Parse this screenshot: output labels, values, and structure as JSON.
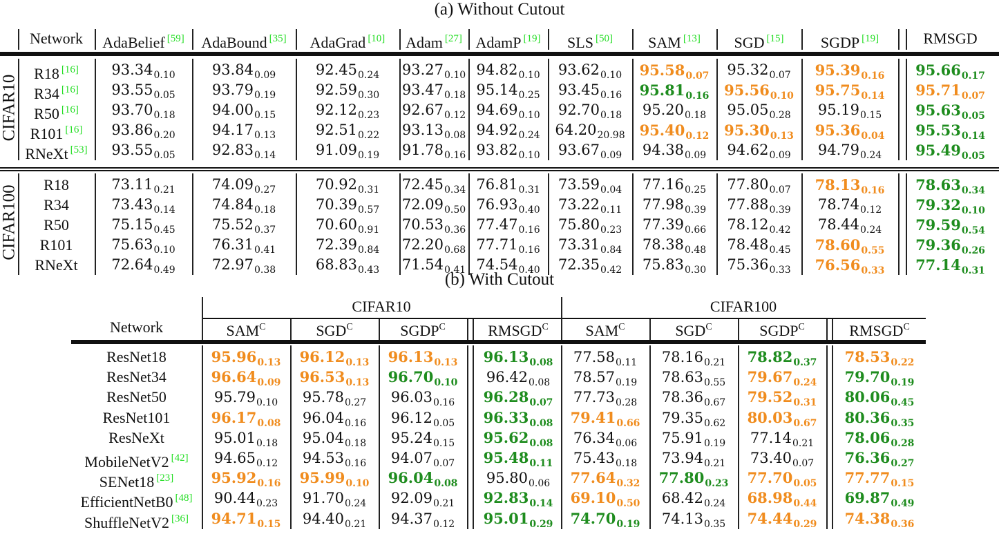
{
  "caption_a": "(a) Without Cutout",
  "caption_b": "(b) With Cutout",
  "colors": {
    "best": "#1e8c1e",
    "second": "#f08c1e",
    "citation": "#22dd22"
  },
  "table_a": {
    "network_header": "Network",
    "columns": [
      {
        "name": "AdaBelief",
        "cite": "[59]"
      },
      {
        "name": "AdaBound",
        "cite": "[35]"
      },
      {
        "name": "AdaGrad",
        "cite": "[10]"
      },
      {
        "name": "Adam",
        "cite": "[27]"
      },
      {
        "name": "AdamP",
        "cite": "[19]"
      },
      {
        "name": "SLS",
        "cite": "[50]"
      },
      {
        "name": "SAM",
        "cite": "[13]"
      },
      {
        "name": "SGD",
        "cite": "[15]"
      },
      {
        "name": "SGDP",
        "cite": "[19]"
      },
      {
        "name": "RMSGD",
        "cite": ""
      }
    ],
    "groups": [
      {
        "dataset": "CIFAR10",
        "rows": [
          {
            "network": "R18",
            "cite": "[16]",
            "cells": [
              [
                "93.34",
                "0.10",
                "k"
              ],
              [
                "93.84",
                "0.09",
                "k"
              ],
              [
                "92.45",
                "0.24",
                "k"
              ],
              [
                "93.27",
                "0.10",
                "k"
              ],
              [
                "94.82",
                "0.10",
                "k"
              ],
              [
                "93.62",
                "0.10",
                "k"
              ],
              [
                "95.58",
                "0.07",
                "o"
              ],
              [
                "95.32",
                "0.07",
                "k"
              ],
              [
                "95.39",
                "0.16",
                "o"
              ],
              [
                "95.66",
                "0.17",
                "g"
              ]
            ]
          },
          {
            "network": "R34",
            "cite": "[16]",
            "cells": [
              [
                "93.55",
                "0.05",
                "k"
              ],
              [
                "93.79",
                "0.19",
                "k"
              ],
              [
                "92.59",
                "0.30",
                "k"
              ],
              [
                "93.47",
                "0.18",
                "k"
              ],
              [
                "95.14",
                "0.25",
                "k"
              ],
              [
                "93.45",
                "0.16",
                "k"
              ],
              [
                "95.81",
                "0.16",
                "g"
              ],
              [
                "95.56",
                "0.10",
                "o"
              ],
              [
                "95.75",
                "0.14",
                "o"
              ],
              [
                "95.71",
                "0.07",
                "o"
              ]
            ]
          },
          {
            "network": "R50",
            "cite": "[16]",
            "cells": [
              [
                "93.70",
                "0.18",
                "k"
              ],
              [
                "94.00",
                "0.15",
                "k"
              ],
              [
                "92.12",
                "0.23",
                "k"
              ],
              [
                "92.67",
                "0.12",
                "k"
              ],
              [
                "94.69",
                "0.10",
                "k"
              ],
              [
                "92.70",
                "0.18",
                "k"
              ],
              [
                "95.20",
                "0.18",
                "k"
              ],
              [
                "95.05",
                "0.28",
                "k"
              ],
              [
                "95.19",
                "0.15",
                "k"
              ],
              [
                "95.63",
                "0.05",
                "g"
              ]
            ]
          },
          {
            "network": "R101",
            "cite": "[16]",
            "cells": [
              [
                "93.86",
                "0.20",
                "k"
              ],
              [
                "94.17",
                "0.13",
                "k"
              ],
              [
                "92.51",
                "0.22",
                "k"
              ],
              [
                "93.13",
                "0.08",
                "k"
              ],
              [
                "94.92",
                "0.24",
                "k"
              ],
              [
                "64.20",
                "20.98",
                "k"
              ],
              [
                "95.40",
                "0.12",
                "o"
              ],
              [
                "95.30",
                "0.13",
                "o"
              ],
              [
                "95.36",
                "0.04",
                "o"
              ],
              [
                "95.53",
                "0.14",
                "g"
              ]
            ]
          },
          {
            "network": "RNeXt",
            "cite": "[53]",
            "cells": [
              [
                "93.55",
                "0.05",
                "k"
              ],
              [
                "92.83",
                "0.14",
                "k"
              ],
              [
                "91.09",
                "0.19",
                "k"
              ],
              [
                "91.78",
                "0.16",
                "k"
              ],
              [
                "93.82",
                "0.10",
                "k"
              ],
              [
                "93.67",
                "0.09",
                "k"
              ],
              [
                "94.38",
                "0.09",
                "k"
              ],
              [
                "94.62",
                "0.09",
                "k"
              ],
              [
                "94.79",
                "0.24",
                "k"
              ],
              [
                "95.49",
                "0.05",
                "g"
              ]
            ]
          }
        ]
      },
      {
        "dataset": "CIFAR100",
        "rows": [
          {
            "network": "R18",
            "cite": "",
            "cells": [
              [
                "73.11",
                "0.21",
                "k"
              ],
              [
                "74.09",
                "0.27",
                "k"
              ],
              [
                "70.92",
                "0.31",
                "k"
              ],
              [
                "72.45",
                "0.34",
                "k"
              ],
              [
                "76.81",
                "0.31",
                "k"
              ],
              [
                "73.59",
                "0.04",
                "k"
              ],
              [
                "77.16",
                "0.25",
                "k"
              ],
              [
                "77.80",
                "0.07",
                "k"
              ],
              [
                "78.13",
                "0.16",
                "o"
              ],
              [
                "78.63",
                "0.34",
                "g"
              ]
            ]
          },
          {
            "network": "R34",
            "cite": "",
            "cells": [
              [
                "73.43",
                "0.14",
                "k"
              ],
              [
                "74.84",
                "0.18",
                "k"
              ],
              [
                "70.39",
                "0.57",
                "k"
              ],
              [
                "72.09",
                "0.50",
                "k"
              ],
              [
                "76.93",
                "0.40",
                "k"
              ],
              [
                "73.22",
                "0.11",
                "k"
              ],
              [
                "77.98",
                "0.39",
                "k"
              ],
              [
                "77.88",
                "0.39",
                "k"
              ],
              [
                "78.74",
                "0.12",
                "k"
              ],
              [
                "79.32",
                "0.10",
                "g"
              ]
            ]
          },
          {
            "network": "R50",
            "cite": "",
            "cells": [
              [
                "75.15",
                "0.45",
                "k"
              ],
              [
                "75.52",
                "0.37",
                "k"
              ],
              [
                "70.60",
                "0.91",
                "k"
              ],
              [
                "70.53",
                "0.36",
                "k"
              ],
              [
                "77.47",
                "0.16",
                "k"
              ],
              [
                "75.80",
                "0.23",
                "k"
              ],
              [
                "77.39",
                "0.66",
                "k"
              ],
              [
                "78.12",
                "0.42",
                "k"
              ],
              [
                "78.44",
                "0.24",
                "k"
              ],
              [
                "79.59",
                "0.54",
                "g"
              ]
            ]
          },
          {
            "network": "R101",
            "cite": "",
            "cells": [
              [
                "75.63",
                "0.10",
                "k"
              ],
              [
                "76.31",
                "0.41",
                "k"
              ],
              [
                "72.39",
                "0.84",
                "k"
              ],
              [
                "72.20",
                "0.68",
                "k"
              ],
              [
                "77.71",
                "0.16",
                "k"
              ],
              [
                "73.31",
                "0.84",
                "k"
              ],
              [
                "78.38",
                "0.48",
                "k"
              ],
              [
                "78.48",
                "0.45",
                "k"
              ],
              [
                "78.60",
                "0.55",
                "o"
              ],
              [
                "79.36",
                "0.26",
                "g"
              ]
            ]
          },
          {
            "network": "RNeXt",
            "cite": "",
            "cells": [
              [
                "72.64",
                "0.49",
                "k"
              ],
              [
                "72.97",
                "0.38",
                "k"
              ],
              [
                "68.83",
                "0.43",
                "k"
              ],
              [
                "71.54",
                "0.41",
                "k"
              ],
              [
                "74.54",
                "0.40",
                "k"
              ],
              [
                "72.35",
                "0.42",
                "k"
              ],
              [
                "75.83",
                "0.30",
                "k"
              ],
              [
                "75.36",
                "0.33",
                "k"
              ],
              [
                "76.56",
                "0.33",
                "o"
              ],
              [
                "77.14",
                "0.31",
                "g"
              ]
            ]
          }
        ]
      }
    ]
  },
  "table_b": {
    "network_header": "Network",
    "dataset_headers": [
      "CIFAR10",
      "CIFAR100"
    ],
    "columns": [
      "SAM",
      "SGD",
      "SGDP",
      "RMSGD",
      "SAM",
      "SGD",
      "SGDP",
      "RMSGD"
    ],
    "column_sup": "C",
    "rows": [
      {
        "network": "ResNet18",
        "cite": "",
        "cells": [
          [
            "95.96",
            "0.13",
            "o"
          ],
          [
            "96.12",
            "0.13",
            "o"
          ],
          [
            "96.13",
            "0.13",
            "o"
          ],
          [
            "96.13",
            "0.08",
            "g"
          ],
          [
            "77.58",
            "0.11",
            "k"
          ],
          [
            "78.16",
            "0.21",
            "k"
          ],
          [
            "78.82",
            "0.37",
            "g"
          ],
          [
            "78.53",
            "0.22",
            "o"
          ]
        ]
      },
      {
        "network": "ResNet34",
        "cite": "",
        "cells": [
          [
            "96.64",
            "0.09",
            "o"
          ],
          [
            "96.53",
            "0.13",
            "o"
          ],
          [
            "96.70",
            "0.10",
            "g"
          ],
          [
            "96.42",
            "0.08",
            "k"
          ],
          [
            "78.57",
            "0.19",
            "k"
          ],
          [
            "78.63",
            "0.55",
            "k"
          ],
          [
            "79.67",
            "0.24",
            "o"
          ],
          [
            "79.70",
            "0.19",
            "g"
          ]
        ]
      },
      {
        "network": "ResNet50",
        "cite": "",
        "cells": [
          [
            "95.79",
            "0.10",
            "k"
          ],
          [
            "95.78",
            "0.27",
            "k"
          ],
          [
            "96.03",
            "0.16",
            "k"
          ],
          [
            "96.28",
            "0.07",
            "g"
          ],
          [
            "77.73",
            "0.28",
            "k"
          ],
          [
            "78.36",
            "0.67",
            "k"
          ],
          [
            "79.52",
            "0.31",
            "o"
          ],
          [
            "80.06",
            "0.45",
            "g"
          ]
        ]
      },
      {
        "network": "ResNet101",
        "cite": "",
        "cells": [
          [
            "96.17",
            "0.08",
            "o"
          ],
          [
            "96.04",
            "0.16",
            "k"
          ],
          [
            "96.12",
            "0.05",
            "k"
          ],
          [
            "96.33",
            "0.08",
            "g"
          ],
          [
            "79.41",
            "0.66",
            "o"
          ],
          [
            "79.35",
            "0.62",
            "k"
          ],
          [
            "80.03",
            "0.67",
            "o"
          ],
          [
            "80.36",
            "0.35",
            "g"
          ]
        ]
      },
      {
        "network": "ResNeXt",
        "cite": "",
        "cells": [
          [
            "95.01",
            "0.18",
            "k"
          ],
          [
            "95.04",
            "0.18",
            "k"
          ],
          [
            "95.24",
            "0.15",
            "k"
          ],
          [
            "95.62",
            "0.08",
            "g"
          ],
          [
            "76.34",
            "0.06",
            "k"
          ],
          [
            "75.91",
            "0.19",
            "k"
          ],
          [
            "77.14",
            "0.21",
            "k"
          ],
          [
            "78.06",
            "0.28",
            "g"
          ]
        ]
      },
      {
        "network": "MobileNetV2",
        "cite": "[42]",
        "cells": [
          [
            "94.65",
            "0.12",
            "k"
          ],
          [
            "94.53",
            "0.16",
            "k"
          ],
          [
            "94.07",
            "0.07",
            "k"
          ],
          [
            "95.48",
            "0.11",
            "g"
          ],
          [
            "75.43",
            "0.18",
            "k"
          ],
          [
            "73.94",
            "0.21",
            "k"
          ],
          [
            "73.40",
            "0.07",
            "k"
          ],
          [
            "76.36",
            "0.27",
            "g"
          ]
        ]
      },
      {
        "network": "SENet18",
        "cite": "[23]",
        "cells": [
          [
            "95.92",
            "0.16",
            "o"
          ],
          [
            "95.99",
            "0.10",
            "o"
          ],
          [
            "96.04",
            "0.08",
            "g"
          ],
          [
            "95.80",
            "0.06",
            "k"
          ],
          [
            "77.64",
            "0.32",
            "o"
          ],
          [
            "77.80",
            "0.23",
            "g"
          ],
          [
            "77.70",
            "0.05",
            "o"
          ],
          [
            "77.77",
            "0.15",
            "o"
          ]
        ]
      },
      {
        "network": "EfficientNetB0",
        "cite": "[48]",
        "cells": [
          [
            "90.44",
            "0.23",
            "k"
          ],
          [
            "91.70",
            "0.24",
            "k"
          ],
          [
            "92.09",
            "0.21",
            "k"
          ],
          [
            "92.83",
            "0.14",
            "g"
          ],
          [
            "69.10",
            "0.50",
            "o"
          ],
          [
            "68.42",
            "0.24",
            "k"
          ],
          [
            "68.98",
            "0.44",
            "o"
          ],
          [
            "69.87",
            "0.49",
            "g"
          ]
        ]
      },
      {
        "network": "ShuffleNetV2",
        "cite": "[36]",
        "cells": [
          [
            "94.71",
            "0.15",
            "o"
          ],
          [
            "94.40",
            "0.21",
            "k"
          ],
          [
            "94.37",
            "0.12",
            "k"
          ],
          [
            "95.01",
            "0.29",
            "g"
          ],
          [
            "74.70",
            "0.19",
            "g"
          ],
          [
            "74.13",
            "0.35",
            "k"
          ],
          [
            "74.44",
            "0.29",
            "o"
          ],
          [
            "74.38",
            "0.36",
            "o"
          ]
        ]
      }
    ]
  }
}
